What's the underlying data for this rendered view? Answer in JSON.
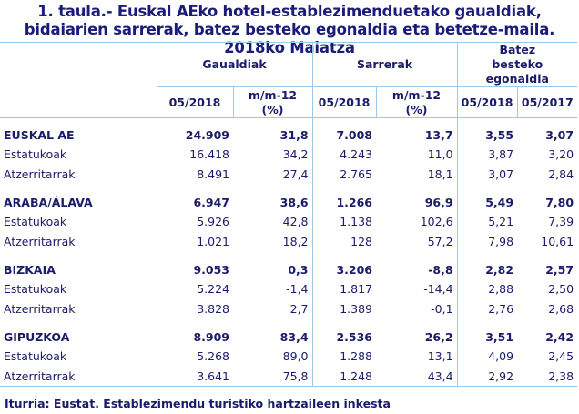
{
  "title": "1. taula.- Euskal AEko hotel-establezimenduetako gaualdiak, bidaiarien sarrerak, batez besteko egonaldia eta betetze-maila. 2018ko Maiatza",
  "headers": {
    "groups": [
      "Gaualdiak",
      "Sarrerak",
      "Batez besteko egonaldia"
    ],
    "sub": [
      "05/2018",
      "m/m-12 (%)",
      "05/2018",
      "m/m-12 (%)",
      "05/2018",
      "05/2017"
    ]
  },
  "rows": [
    {
      "label": "EUSKAL AE",
      "group": true,
      "values": [
        "24.909",
        "31,8",
        "7.008",
        "13,7",
        "3,55",
        "3,07"
      ]
    },
    {
      "label": "Estatukoak",
      "values": [
        "16.418",
        "34,2",
        "4.243",
        "11,0",
        "3,87",
        "3,20"
      ]
    },
    {
      "label": "Atzerritarrak",
      "values": [
        "8.491",
        "27,4",
        "2.765",
        "18,1",
        "3,07",
        "2,84"
      ]
    },
    {
      "label": "ARABA/ÁLAVA",
      "group": true,
      "values": [
        "6.947",
        "38,6",
        "1.266",
        "96,9",
        "5,49",
        "7,80"
      ]
    },
    {
      "label": "Estatukoak",
      "values": [
        "5.926",
        "42,8",
        "1.138",
        "102,6",
        "5,21",
        "7,39"
      ]
    },
    {
      "label": "Atzerritarrak",
      "values": [
        "1.021",
        "18,2",
        "128",
        "57,2",
        "7,98",
        "10,61"
      ]
    },
    {
      "label": "BIZKAIA",
      "group": true,
      "values": [
        "9.053",
        "0,3",
        "3.206",
        "-8,8",
        "2,82",
        "2,57"
      ]
    },
    {
      "label": "Estatukoak",
      "values": [
        "5.224",
        "-1,4",
        "1.817",
        "-14,4",
        "2,88",
        "2,50"
      ]
    },
    {
      "label": "Atzerritarrak",
      "values": [
        "3.828",
        "2,7",
        "1.389",
        "-0,1",
        "2,76",
        "2,68"
      ]
    },
    {
      "label": "GIPUZKOA",
      "group": true,
      "values": [
        "8.909",
        "83,4",
        "2.536",
        "26,2",
        "3,51",
        "2,42"
      ]
    },
    {
      "label": "Estatukoak",
      "values": [
        "5.268",
        "89,0",
        "1.288",
        "13,1",
        "4,09",
        "2,45"
      ]
    },
    {
      "label": "Atzerritarrak",
      "values": [
        "3.641",
        "75,8",
        "1.248",
        "43,4",
        "2,92",
        "2,38"
      ]
    }
  ],
  "source": "Iturria: Eustat. Establezimendu turistiko hartzaileen inkesta"
}
